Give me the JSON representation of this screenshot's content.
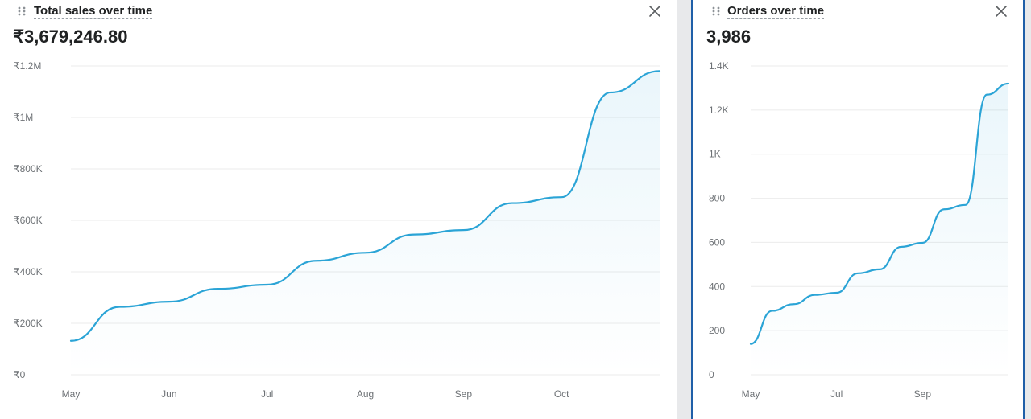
{
  "chart_data": [
    {
      "type": "area",
      "title": "Total sales over time",
      "total": "₹3,679,246.80",
      "xlabel": "",
      "ylabel": "",
      "ylim": [
        0,
        1200000
      ],
      "yticks": [
        {
          "value": 0,
          "label": "₹0"
        },
        {
          "value": 200000,
          "label": "₹200K"
        },
        {
          "value": 400000,
          "label": "₹400K"
        },
        {
          "value": 600000,
          "label": "₹600K"
        },
        {
          "value": 800000,
          "label": "₹800K"
        },
        {
          "value": 1000000,
          "label": "₹1M"
        },
        {
          "value": 1200000,
          "label": "₹1.2M"
        }
      ],
      "xlim": [
        0,
        6
      ],
      "xticks": [
        {
          "value": 0,
          "label": "May"
        },
        {
          "value": 1,
          "label": "Jun"
        },
        {
          "value": 2,
          "label": "Jul"
        },
        {
          "value": 3,
          "label": "Aug"
        },
        {
          "value": 4,
          "label": "Sep"
        },
        {
          "value": 5,
          "label": "Oct"
        }
      ],
      "grid": true,
      "legend": "none",
      "color": "#2ba4d6",
      "series": [
        {
          "name": "Total sales",
          "x": [
            0,
            0.5,
            1,
            1.5,
            2,
            2.5,
            3,
            3.5,
            4,
            4.5,
            5,
            5.5,
            6
          ],
          "y": [
            132000,
            264000,
            284000,
            334000,
            350000,
            443000,
            474000,
            545000,
            562000,
            667000,
            690000,
            1097000,
            1180000
          ]
        }
      ]
    },
    {
      "type": "area",
      "title": "Orders over time",
      "total": "3,986",
      "xlabel": "",
      "ylabel": "",
      "ylim": [
        0,
        1400
      ],
      "yticks": [
        {
          "value": 0,
          "label": "0"
        },
        {
          "value": 200,
          "label": "200"
        },
        {
          "value": 400,
          "label": "400"
        },
        {
          "value": 600,
          "label": "600"
        },
        {
          "value": 800,
          "label": "800"
        },
        {
          "value": 1000,
          "label": "1K"
        },
        {
          "value": 1200,
          "label": "1.2K"
        },
        {
          "value": 1400,
          "label": "1.4K"
        }
      ],
      "xlim": [
        0,
        6
      ],
      "xticks": [
        {
          "value": 0,
          "label": "May"
        },
        {
          "value": 2,
          "label": "Jul"
        },
        {
          "value": 4,
          "label": "Sep"
        }
      ],
      "grid": true,
      "legend": "none",
      "color": "#2ba4d6",
      "series": [
        {
          "name": "Orders",
          "x": [
            0,
            0.5,
            1,
            1.5,
            2,
            2.5,
            3,
            3.5,
            4,
            4.5,
            5,
            5.5,
            6
          ],
          "y": [
            140,
            290,
            320,
            362,
            372,
            460,
            478,
            580,
            598,
            750,
            770,
            1270,
            1320
          ]
        }
      ]
    }
  ],
  "icons": {
    "drag": "drag-handle-icon",
    "close": "close-icon"
  }
}
